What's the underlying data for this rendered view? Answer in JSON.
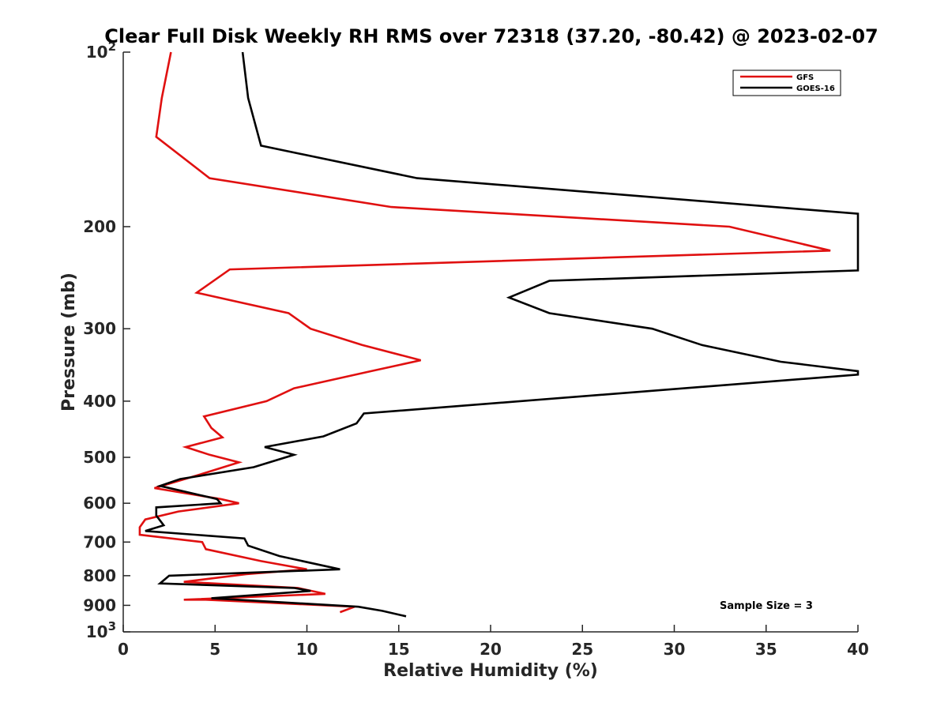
{
  "chart_data": {
    "type": "line",
    "title": "Clear Full Disk Weekly RH RMS over 72318 (37.20, -80.42) @ 2023-02-07",
    "xlabel": "Relative Humidity (%)",
    "ylabel": "Pressure (mb)",
    "xlim": [
      0,
      40
    ],
    "ylim": [
      100,
      1000
    ],
    "y_scale": "log",
    "y_reversed": true,
    "grid": false,
    "legend_position": "top-right",
    "x_ticks": [
      0,
      5,
      10,
      15,
      20,
      25,
      30,
      35,
      40
    ],
    "x_tick_labels": [
      "0",
      "5",
      "10",
      "15",
      "20",
      "25",
      "30",
      "35",
      "40"
    ],
    "y_ticks": [
      100,
      200,
      300,
      400,
      500,
      600,
      700,
      800,
      900,
      1000
    ],
    "y_tick_labels": [
      {
        "base": "10",
        "exp": "2"
      },
      {
        "base": "200",
        "exp": ""
      },
      {
        "base": "300",
        "exp": ""
      },
      {
        "base": "400",
        "exp": ""
      },
      {
        "base": "500",
        "exp": ""
      },
      {
        "base": "600",
        "exp": ""
      },
      {
        "base": "700",
        "exp": ""
      },
      {
        "base": "800",
        "exp": ""
      },
      {
        "base": "900",
        "exp": ""
      },
      {
        "base": "10",
        "exp": "3"
      }
    ],
    "annotation": "Sample Size = 3",
    "series": [
      {
        "name": "GFS",
        "color": "#e01010",
        "points": [
          [
            2.6,
            100
          ],
          [
            2.1,
            120
          ],
          [
            1.8,
            140
          ],
          [
            4.7,
            165
          ],
          [
            14.6,
            185
          ],
          [
            33.0,
            200
          ],
          [
            38.5,
            220
          ],
          [
            5.8,
            237
          ],
          [
            4.0,
            260
          ],
          [
            9.0,
            282
          ],
          [
            10.2,
            300
          ],
          [
            13.0,
            320
          ],
          [
            16.2,
            340
          ],
          [
            13.5,
            355
          ],
          [
            9.3,
            380
          ],
          [
            7.8,
            400
          ],
          [
            4.4,
            425
          ],
          [
            4.8,
            445
          ],
          [
            5.4,
            462
          ],
          [
            3.4,
            480
          ],
          [
            4.7,
            495
          ],
          [
            6.3,
            510
          ],
          [
            4.2,
            535
          ],
          [
            1.7,
            565
          ],
          [
            5.3,
            590
          ],
          [
            6.3,
            600
          ],
          [
            3.0,
            620
          ],
          [
            1.2,
            640
          ],
          [
            0.9,
            660
          ],
          [
            0.9,
            680
          ],
          [
            4.3,
            700
          ],
          [
            4.5,
            720
          ],
          [
            7.5,
            755
          ],
          [
            10.0,
            780
          ],
          [
            6.7,
            795
          ],
          [
            3.3,
            820
          ],
          [
            9.5,
            840
          ],
          [
            11.0,
            860
          ],
          [
            3.3,
            880
          ],
          [
            4.5,
            880
          ],
          [
            12.6,
            905
          ],
          [
            11.8,
            925
          ]
        ]
      },
      {
        "name": "GOES-16",
        "color": "#000000",
        "points": [
          [
            6.5,
            100
          ],
          [
            6.8,
            120
          ],
          [
            7.5,
            145
          ],
          [
            16.0,
            165
          ],
          [
            40.0,
            190
          ],
          [
            40.0,
            238
          ],
          [
            23.2,
            248
          ],
          [
            21.0,
            265
          ],
          [
            23.2,
            282
          ],
          [
            28.8,
            300
          ],
          [
            31.5,
            320
          ],
          [
            35.8,
            342
          ],
          [
            40.0,
            355
          ],
          [
            40.0,
            360
          ],
          [
            13.1,
            420
          ],
          [
            12.7,
            437
          ],
          [
            10.9,
            460
          ],
          [
            7.7,
            480
          ],
          [
            9.3,
            495
          ],
          [
            7.1,
            520
          ],
          [
            3.1,
            545
          ],
          [
            2.0,
            560
          ],
          [
            5.1,
            590
          ],
          [
            5.3,
            600
          ],
          [
            1.8,
            610
          ],
          [
            1.8,
            630
          ],
          [
            2.2,
            655
          ],
          [
            1.2,
            670
          ],
          [
            6.6,
            690
          ],
          [
            6.8,
            710
          ],
          [
            8.5,
            740
          ],
          [
            11.8,
            780
          ],
          [
            2.5,
            800
          ],
          [
            2.0,
            825
          ],
          [
            9.3,
            840
          ],
          [
            10.2,
            850
          ],
          [
            4.8,
            875
          ],
          [
            12.8,
            905
          ],
          [
            14.1,
            920
          ],
          [
            15.4,
            940
          ]
        ]
      }
    ]
  }
}
